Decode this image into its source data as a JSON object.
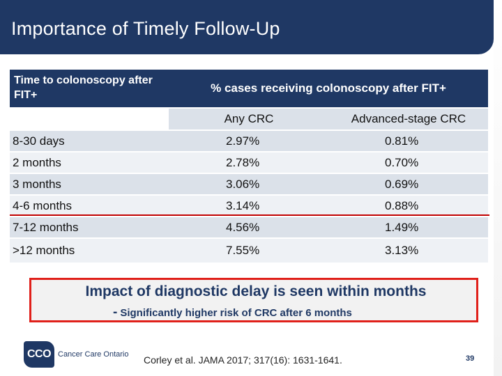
{
  "slide": {
    "title": "Importance of Timely Follow-Up",
    "page_number": "39"
  },
  "table": {
    "header_time": "Time to colonoscopy after FIT+",
    "header_pct": "% cases receiving colonoscopy after FIT+",
    "col_any": "Any CRC",
    "col_adv": "Advanced-stage CRC",
    "rows": [
      {
        "label": "8-30 days",
        "any": "2.97%",
        "adv": "0.81%"
      },
      {
        "label": "2 months",
        "any": "2.78%",
        "adv": "0.70%"
      },
      {
        "label": "3 months",
        "any": "3.06%",
        "adv": "0.69%"
      },
      {
        "label": "4-6 months",
        "any": "3.14%",
        "adv": "0.88%"
      },
      {
        "label": "7-12 months",
        "any": "4.56%",
        "adv": "1.49%"
      },
      {
        "label": ">12 months",
        "any": "7.55%",
        "adv": "3.13%"
      }
    ]
  },
  "callout": {
    "main": "Impact of diagnostic delay is seen within months",
    "dash": "-",
    "sub": "Significantly higher risk of CRC after 6 months"
  },
  "footer": {
    "logo_mark": "CCO",
    "logo_text": "Cancer Care Ontario",
    "citation": "Corley et al. JAMA 2017; 317(16): 1631-1641."
  },
  "colors": {
    "navy": "#1f3864",
    "red": "#e0201a",
    "row_dark": "#dbe1e9",
    "row_light": "#eef1f5"
  }
}
